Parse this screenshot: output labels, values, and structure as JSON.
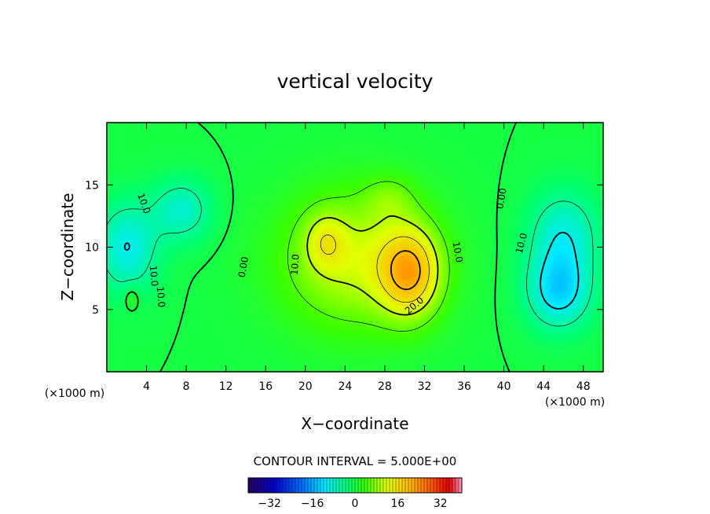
{
  "chart_data": {
    "type": "heatmap",
    "subtype": "filled-contour",
    "title": "vertical velocity",
    "xlabel": "X−coordinate",
    "ylabel": "Z−coordinate",
    "x_unit_label": "(×1000 m)",
    "x_unit_label_right": "(×1000 m)",
    "xlim": [
      0,
      50
    ],
    "ylim": [
      0,
      20
    ],
    "x_ticks": [
      4,
      8,
      12,
      16,
      20,
      24,
      28,
      32,
      36,
      40,
      44,
      48
    ],
    "y_ticks": [
      5,
      10,
      15
    ],
    "contour_interval_text": "CONTOUR INTERVAL = 5.000E+00",
    "contour_interval": 5.0,
    "colormap": "rainbow",
    "colorbar": {
      "range": [
        -40,
        40
      ],
      "ticks": [
        -32,
        -16,
        0,
        16,
        32
      ],
      "tick_labels": [
        "−32",
        "−16",
        "0",
        "16",
        "32"
      ]
    },
    "features": [
      {
        "x": 25,
        "y": 9,
        "sigma_x": 7.5,
        "sigma_y": 5.5,
        "value": 11
      },
      {
        "x": 30.5,
        "y": 8,
        "sigma_x": 3.0,
        "sigma_y": 3.5,
        "value": 17
      },
      {
        "x": 22,
        "y": 10.5,
        "sigma_x": 2.0,
        "sigma_y": 2.2,
        "value": 7
      },
      {
        "x": 28.5,
        "y": 14,
        "sigma_x": 2.5,
        "sigma_y": 1.8,
        "value": 4
      },
      {
        "x": 45.5,
        "y": 6.5,
        "sigma_x": 3.2,
        "sigma_y": 3.0,
        "value": -12
      },
      {
        "x": 46,
        "y": 11,
        "sigma_x": 3.5,
        "sigma_y": 3.5,
        "value": -9
      },
      {
        "x": 2,
        "y": 10,
        "sigma_x": 3.0,
        "sigma_y": 3.5,
        "value": -10
      },
      {
        "x": 7.5,
        "y": 13,
        "sigma_x": 3.0,
        "sigma_y": 2.5,
        "value": -8
      },
      {
        "x": 2.5,
        "y": 6,
        "sigma_x": 0.8,
        "sigma_y": 1.0,
        "value": 4
      }
    ],
    "contour_labels": [
      {
        "text": "10.0",
        "x": 3.7,
        "y": 13.5,
        "rotate": 70
      },
      {
        "text": "10.0",
        "x": 4.7,
        "y": 7.7,
        "rotate": 85
      },
      {
        "text": "10.0",
        "x": 5.4,
        "y": 6.0,
        "rotate": 85
      },
      {
        "text": "0.00",
        "x": 13.8,
        "y": 8.4,
        "rotate": -80
      },
      {
        "text": "10.0",
        "x": 19.0,
        "y": 8.6,
        "rotate": -85
      },
      {
        "text": "10.0",
        "x": 35.3,
        "y": 9.6,
        "rotate": 80
      },
      {
        "text": "20.0",
        "x": 31.0,
        "y": 5.3,
        "rotate": -40
      },
      {
        "text": "0.00",
        "x": 39.8,
        "y": 13.9,
        "rotate": -80
      },
      {
        "text": "10.0",
        "x": 41.8,
        "y": 10.3,
        "rotate": -75
      }
    ]
  }
}
